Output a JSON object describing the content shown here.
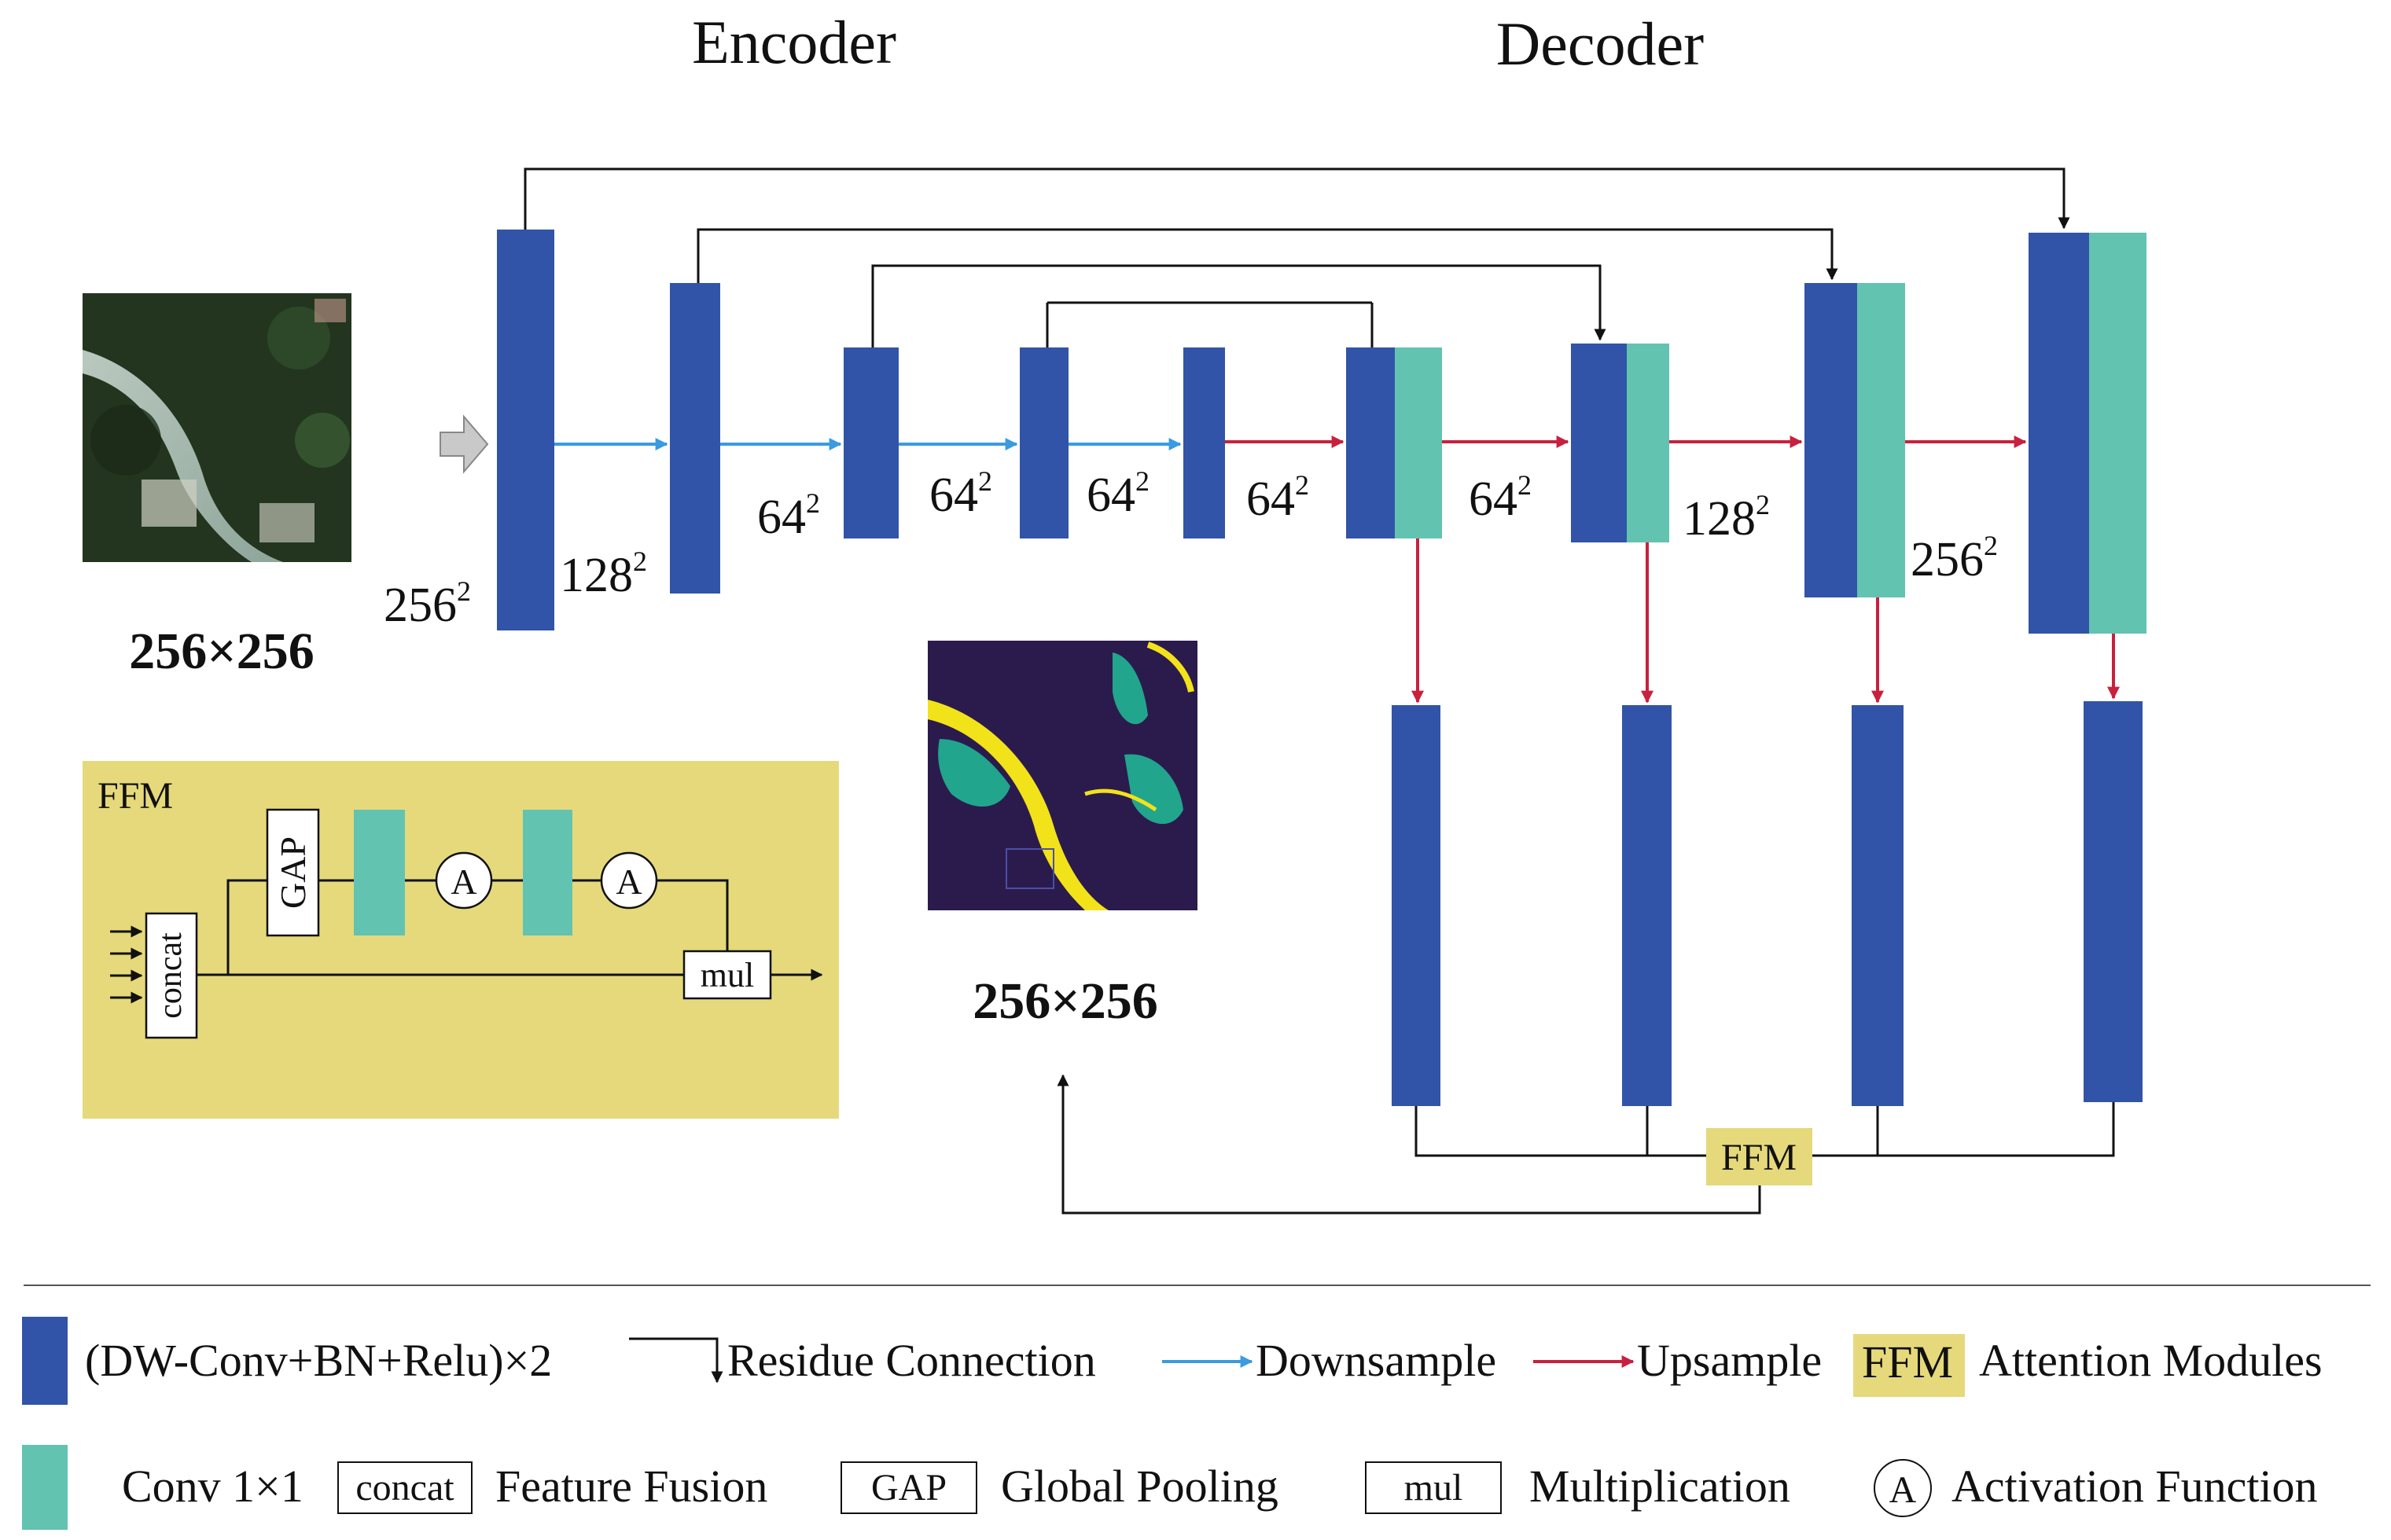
{
  "headings": {
    "encoder": "Encoder",
    "decoder": "Decoder"
  },
  "colors": {
    "conv_block": "#3154a8",
    "conv1x1": "#62c3b1",
    "downsample": "#3a9be0",
    "upsample": "#c8213e",
    "ffm_bg": "#e5d97b",
    "line": "#111111",
    "input_arrow": "#c9c9c9"
  },
  "sizes": {
    "input_image": "256×256",
    "output_image": "256×256",
    "enc1": "256",
    "enc2": "128",
    "enc3": "64",
    "enc4": "64",
    "enc5": "64",
    "dec1": "64",
    "dec2": "64",
    "dec3": "128",
    "dec4": "256",
    "exponent": "2"
  },
  "ffm_node": "FFM",
  "ffm_inset": {
    "title": "FFM",
    "concat": "concat",
    "gap": "GAP",
    "activation": "A",
    "mul": "mul"
  },
  "legend": {
    "row1": {
      "conv_block_label": "(DW-Conv+BN+Relu)×2",
      "residue_label": "Residue Connection",
      "downsample_label": "Downsample",
      "upsample_label": "Upsample",
      "ffm_box": "FFM",
      "attention_label": "Attention Modules"
    },
    "row2": {
      "conv1x1_label": "Conv 1×1",
      "concat_box": "concat",
      "fusion_label": "Feature Fusion",
      "gap_box": "GAP",
      "pooling_label": "Global Pooling",
      "mul_box": "mul",
      "multiplication_label": "Multiplication",
      "activation_symbol": "A",
      "activation_label": "Activation Function"
    }
  }
}
